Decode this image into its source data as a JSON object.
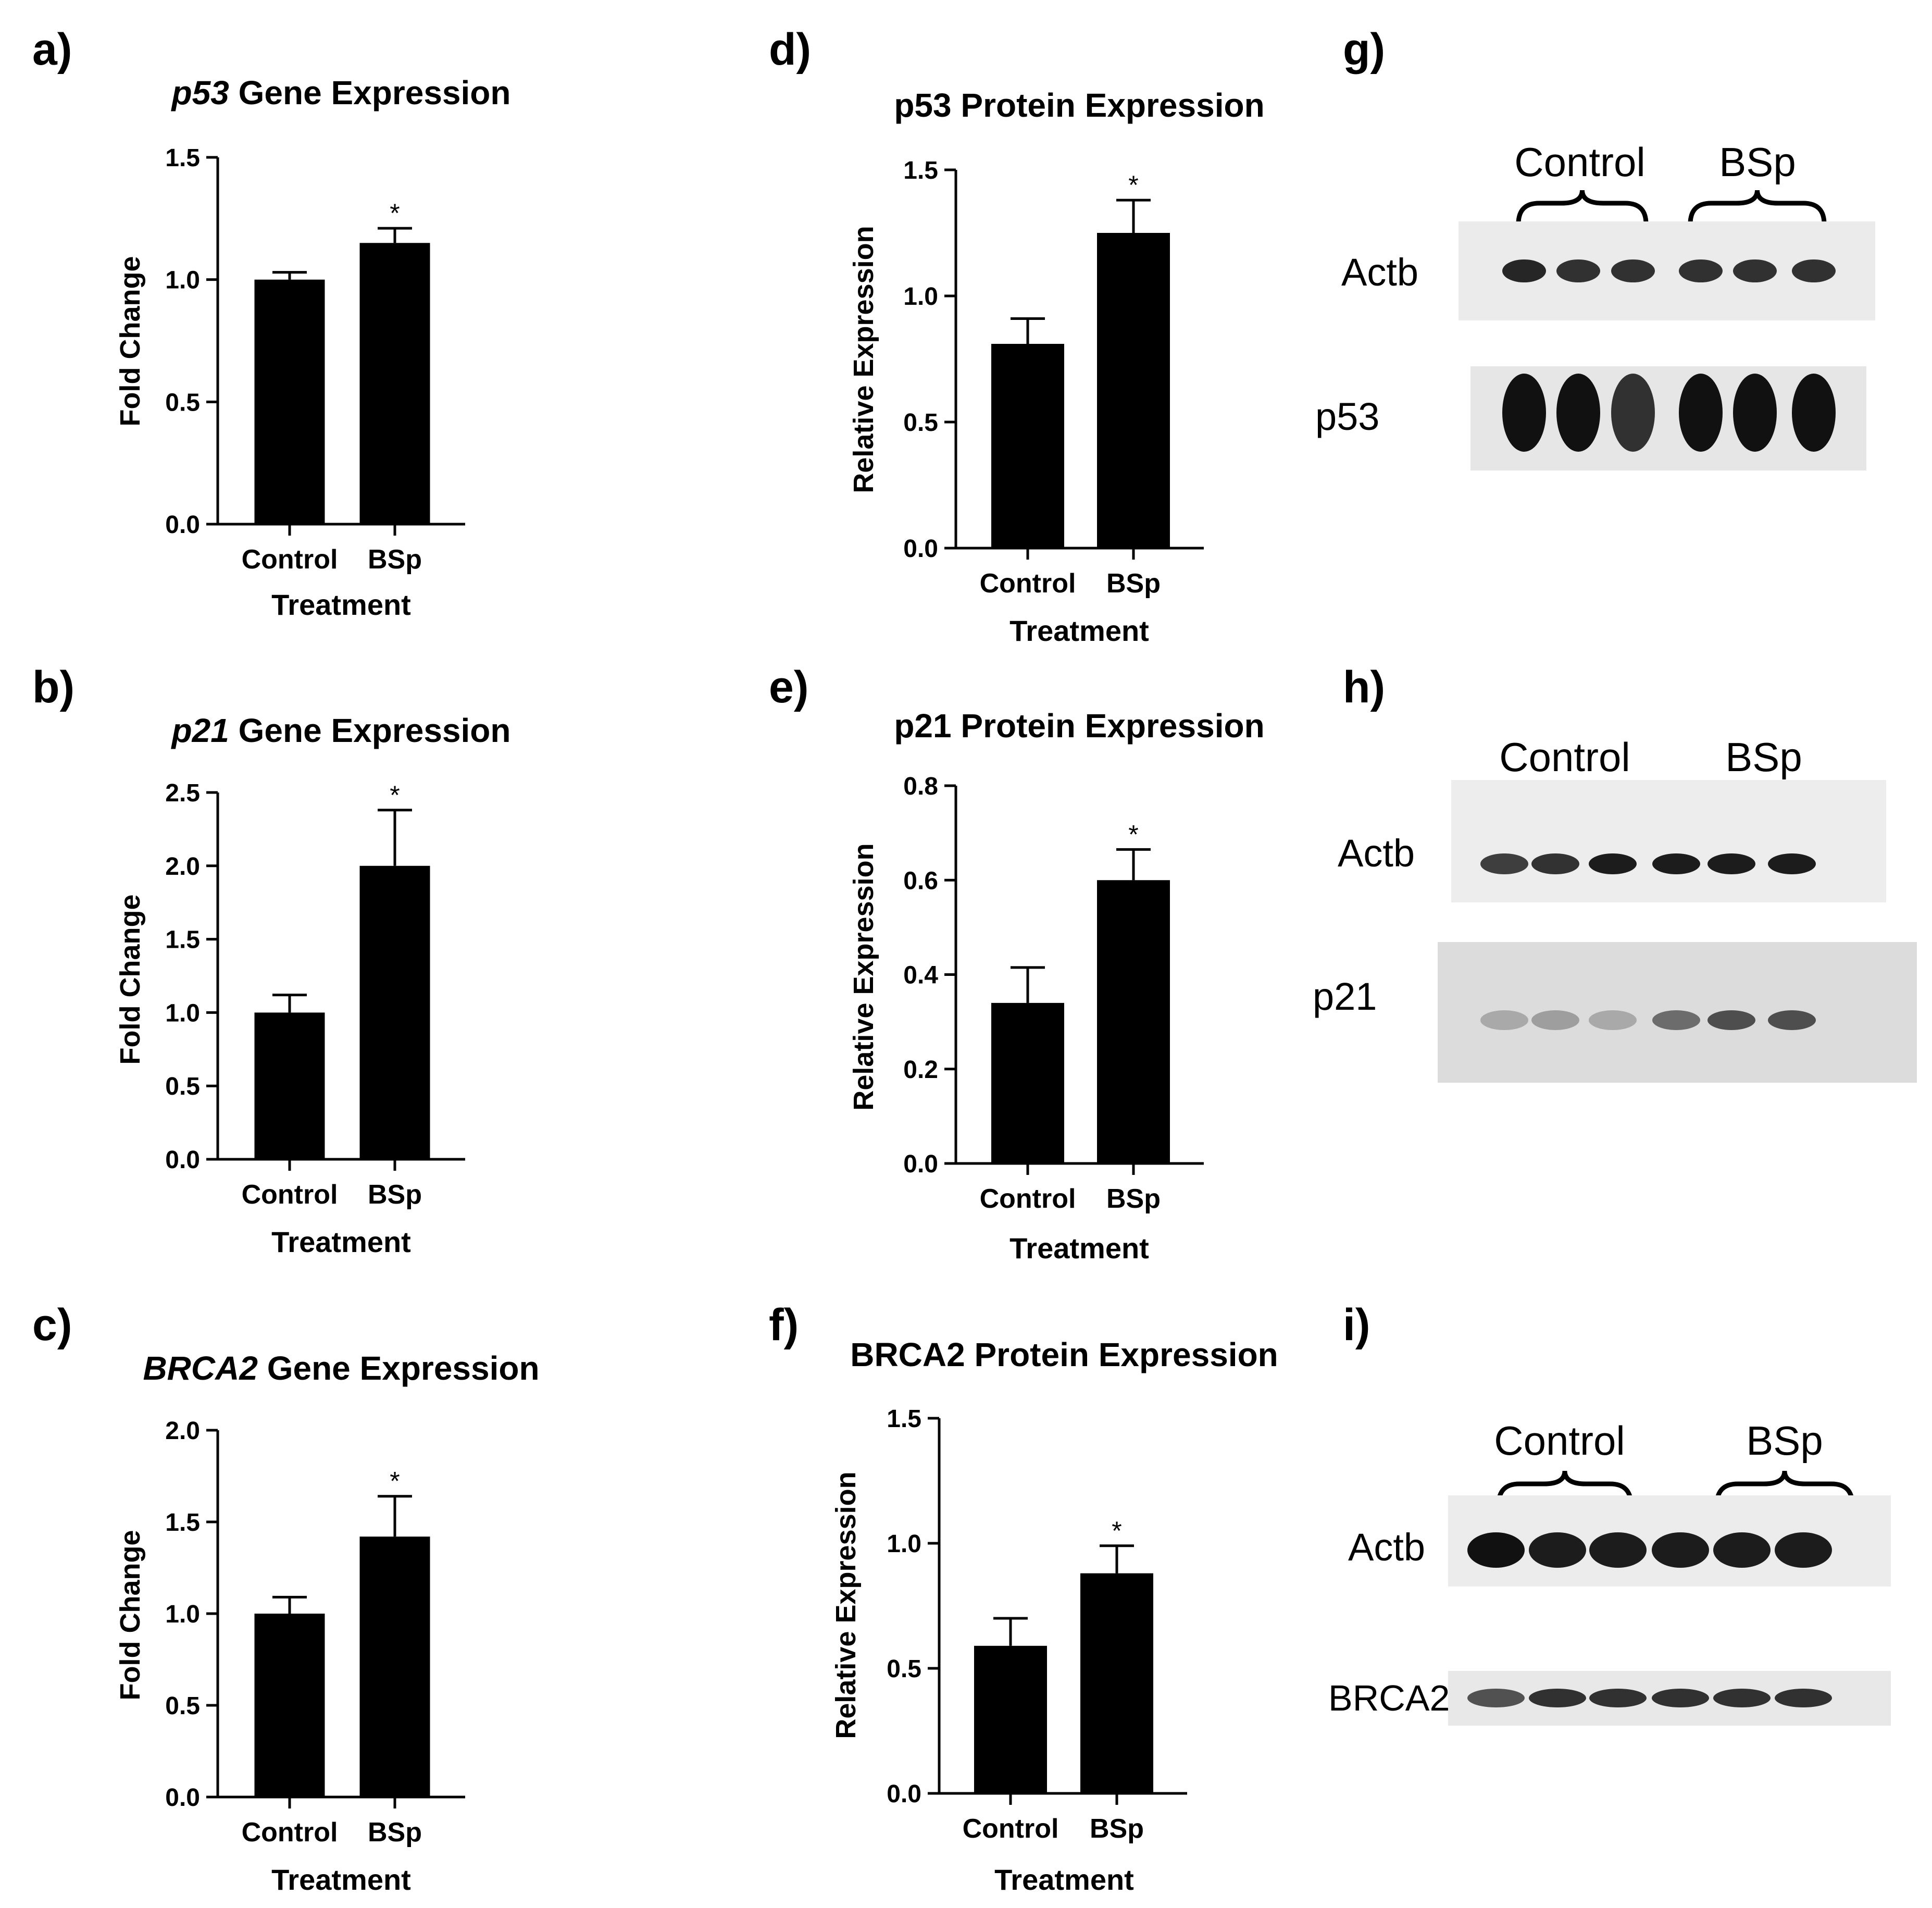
{
  "panels": [
    {
      "letter": "a)",
      "title_italic": "p53",
      "title_rest": " Gene Expression",
      "ylabel": "Fold Change",
      "xlabel": "Treatment"
    },
    {
      "letter": "b)",
      "title_italic": "p21",
      "title_rest": " Gene Expression",
      "ylabel": "Fold Change",
      "xlabel": "Treatment"
    },
    {
      "letter": "c)",
      "title_italic": "BRCA2",
      "title_rest": " Gene Expression",
      "ylabel": "Fold Change",
      "xlabel": "Treatment"
    },
    {
      "letter": "d)",
      "title_italic": "",
      "title_rest": "p53 Protein Expression",
      "ylabel": "Relative Expression",
      "xlabel": "Treatment"
    },
    {
      "letter": "e)",
      "title_italic": "",
      "title_rest": "p21 Protein Expression",
      "ylabel": "Relative Expression",
      "xlabel": "Treatment"
    },
    {
      "letter": "f)",
      "title_italic": "",
      "title_rest": "BRCA2 Protein Expression",
      "ylabel": "Relative Expression",
      "xlabel": "Treatment"
    }
  ],
  "chart_data": [
    {
      "type": "bar",
      "categories": [
        "Control",
        "BSp"
      ],
      "values": [
        1.0,
        1.15
      ],
      "errors": [
        0.03,
        0.06
      ],
      "significance": [
        "",
        "*"
      ],
      "ylim": [
        0,
        1.5
      ],
      "yticks": [
        "0.0",
        "0.5",
        "1.0",
        "1.5"
      ],
      "title": "p53 Gene Expression",
      "xlabel": "Treatment",
      "ylabel": "Fold Change"
    },
    {
      "type": "bar",
      "categories": [
        "Control",
        "BSp"
      ],
      "values": [
        1.0,
        2.0
      ],
      "errors": [
        0.12,
        0.38
      ],
      "significance": [
        "",
        "*"
      ],
      "ylim": [
        0,
        2.5
      ],
      "yticks": [
        "0.0",
        "0.5",
        "1.0",
        "1.5",
        "2.0",
        "2.5"
      ],
      "title": "p21 Gene Expression",
      "xlabel": "Treatment",
      "ylabel": "Fold Change"
    },
    {
      "type": "bar",
      "categories": [
        "Control",
        "BSp"
      ],
      "values": [
        1.0,
        1.42
      ],
      "errors": [
        0.09,
        0.22
      ],
      "significance": [
        "",
        "*"
      ],
      "ylim": [
        0,
        2.0
      ],
      "yticks": [
        "0.0",
        "0.5",
        "1.0",
        "1.5",
        "2.0"
      ],
      "title": "BRCA2 Gene Expression",
      "xlabel": "Treatment",
      "ylabel": "Fold Change"
    },
    {
      "type": "bar",
      "categories": [
        "Control",
        "BSp"
      ],
      "values": [
        0.81,
        1.25
      ],
      "errors": [
        0.1,
        0.13
      ],
      "significance": [
        "",
        "*"
      ],
      "ylim": [
        0,
        1.5
      ],
      "yticks": [
        "0.0",
        "0.5",
        "1.0",
        "1.5"
      ],
      "title": "p53 Protein Expression",
      "xlabel": "Treatment",
      "ylabel": "Relative Expression"
    },
    {
      "type": "bar",
      "categories": [
        "Control",
        "BSp"
      ],
      "values": [
        0.34,
        0.6
      ],
      "errors": [
        0.075,
        0.065
      ],
      "significance": [
        "",
        "*"
      ],
      "ylim": [
        0,
        0.8
      ],
      "yticks": [
        "0.0",
        "0.2",
        "0.4",
        "0.6",
        "0.8"
      ],
      "title": "p21 Protein Expression",
      "xlabel": "Treatment",
      "ylabel": "Relative Expression"
    },
    {
      "type": "bar",
      "categories": [
        "Control",
        "BSp"
      ],
      "values": [
        0.59,
        0.88
      ],
      "errors": [
        0.11,
        0.11
      ],
      "significance": [
        "",
        "*"
      ],
      "ylim": [
        0,
        1.5
      ],
      "yticks": [
        "0.0",
        "0.5",
        "1.0",
        "1.5"
      ],
      "title": "BRCA2 Protein Expression",
      "xlabel": "Treatment",
      "ylabel": "Relative Expression"
    }
  ],
  "blots": [
    {
      "letter": "g)",
      "groups": [
        "Control",
        "BSp"
      ],
      "rows": [
        {
          "label": "Actb",
          "intensity": [
            0.9,
            0.85,
            0.85,
            0.85,
            0.85,
            0.85
          ],
          "background": "#ebebeb"
        },
        {
          "label": "p53",
          "intensity": [
            1.0,
            1.0,
            0.85,
            1.0,
            1.0,
            1.0
          ],
          "background": "#e6e6e6"
        }
      ]
    },
    {
      "letter": "h)",
      "groups": [
        "Control",
        "BSp"
      ],
      "rows": [
        {
          "label": "Actb",
          "intensity": [
            0.8,
            0.85,
            0.95,
            0.95,
            0.95,
            0.95
          ],
          "background": "#ededed"
        },
        {
          "label": "p21",
          "intensity": [
            0.25,
            0.3,
            0.25,
            0.55,
            0.7,
            0.7
          ],
          "background": "#dcdcdc"
        }
      ]
    },
    {
      "letter": "i)",
      "groups": [
        "Control",
        "BSp"
      ],
      "rows": [
        {
          "label": "Actb",
          "intensity": [
            1.0,
            0.95,
            0.95,
            0.95,
            0.95,
            0.95
          ],
          "background": "#ececec"
        },
        {
          "label": "BRCA2",
          "intensity": [
            0.7,
            0.85,
            0.85,
            0.85,
            0.85,
            0.85
          ],
          "background": "#e8e8e8"
        }
      ]
    }
  ],
  "colors": {
    "bar": "#000000",
    "band": "#111111",
    "text": "#000000"
  }
}
